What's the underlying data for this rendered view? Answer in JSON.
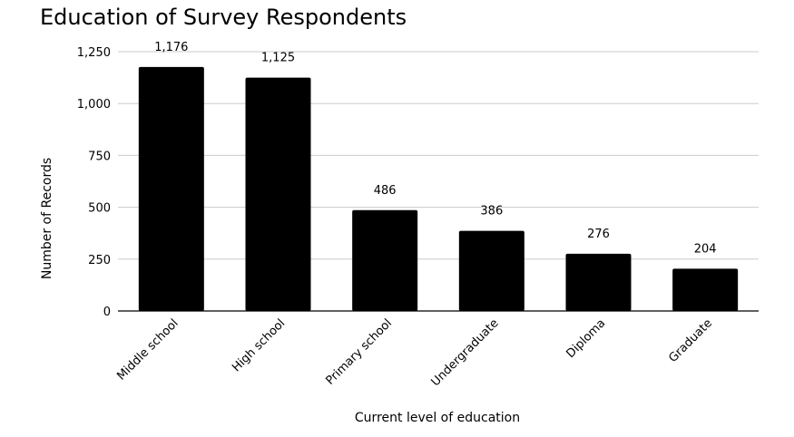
{
  "chart_data": {
    "type": "bar",
    "title": "Education of Survey Respondents",
    "xlabel": "Current level of education",
    "ylabel": "Number of Records",
    "categories": [
      "Middle school",
      "High school",
      "Primary school",
      "Undergraduate",
      "Diploma",
      "Graduate"
    ],
    "values": [
      1176,
      1125,
      486,
      386,
      276,
      204
    ],
    "data_labels": [
      "1,176",
      "1,125",
      "486",
      "386",
      "276",
      "204"
    ],
    "ylim": [
      0,
      1250
    ],
    "yticks": [
      0,
      250,
      500,
      750,
      1000,
      1250
    ],
    "ytick_labels": [
      "0",
      "250",
      "500",
      "750",
      "1,000",
      "1,250"
    ],
    "grid": true,
    "legend": "none",
    "bar_color": "#000000",
    "grid_color": "#cccccc"
  }
}
